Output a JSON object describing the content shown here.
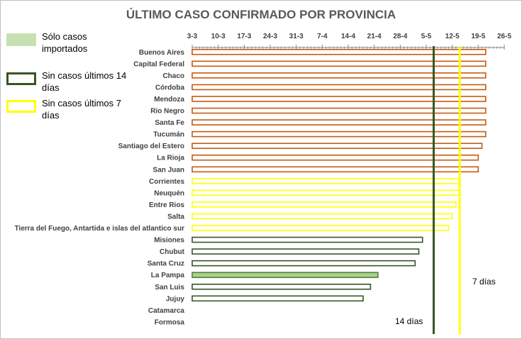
{
  "chart_data": {
    "type": "bar",
    "orientation": "horizontal",
    "title": "ÚLTIMO CASO CONFIRMADO POR PROVINCIA",
    "x_ticks": [
      "3-3",
      "10-3",
      "17-3",
      "24-3",
      "31-3",
      "7-4",
      "14-4",
      "21-4",
      "28-4",
      "5-5",
      "12-5",
      "19-5",
      "26-5"
    ],
    "x_start": "3-3",
    "xlim": [
      "3-3",
      "26-5"
    ],
    "categories": [
      "Buenos Aires",
      "Capital Federal",
      "Chaco",
      "Córdoba",
      "Mendoza",
      "Rio Negro",
      "Santa Fe",
      "Tucumán",
      "Santiago del Estero",
      "La Rioja",
      "San Juan",
      "Corrientes",
      "Neuquén",
      "Entre Rios",
      "Salta",
      "Tierra del Fuego, Antartida e islas del atlantico sur",
      "Misiones",
      "Chubut",
      "Santa Cruz",
      "La Pampa",
      "San Luis",
      "Jujuy",
      "Catamarca",
      "Formosa"
    ],
    "values": [
      "21-5",
      "21-5",
      "21-5",
      "21-5",
      "21-5",
      "21-5",
      "21-5",
      "21-5",
      "20-5",
      "19-5",
      "19-5",
      "14-5",
      "14-5",
      "13-5",
      "12-5",
      "11-5",
      "4-5",
      "3-5",
      "2-5",
      "22-4",
      "20-4",
      "18-4",
      null,
      null
    ],
    "group": [
      "reciente",
      "reciente",
      "reciente",
      "reciente",
      "reciente",
      "reciente",
      "reciente",
      "reciente",
      "reciente",
      "reciente",
      "reciente",
      "sin_casos_7_dias",
      "sin_casos_7_dias",
      "sin_casos_7_dias",
      "sin_casos_7_dias",
      "sin_casos_7_dias",
      "sin_casos_14_dias",
      "sin_casos_14_dias",
      "sin_casos_14_dias",
      "solo_importados",
      "sin_casos_14_dias",
      "sin_casos_14_dias",
      "sin_casos_14_dias",
      "sin_casos_14_dias"
    ],
    "reference_lines": [
      {
        "label": "14 días",
        "x": "7-5",
        "color": "#375623"
      },
      {
        "label": "7 días",
        "x": "14-5",
        "color": "#ffff00"
      }
    ],
    "legend": [
      {
        "label": "Sólo casos importados",
        "fill": "#c6e0b4",
        "border": "#c6e0b4"
      },
      {
        "label": "Sin casos últimos 14 días",
        "fill": "#ffffff",
        "border": "#375623"
      },
      {
        "label": "Sin casos últimos 7 días",
        "fill": "#ffffff",
        "border": "#ffff00"
      }
    ],
    "legend_position": "left",
    "grid": false
  },
  "colors": {
    "reciente": "#c55a11",
    "sin_casos_7_dias": "#ffff00",
    "sin_casos_14_dias": "#375623",
    "solo_importados_fill": "#a9d18e",
    "solo_importados_border": "#548235",
    "axis": "#808080",
    "line_14": "#375623",
    "line_7": "#ffff00"
  }
}
